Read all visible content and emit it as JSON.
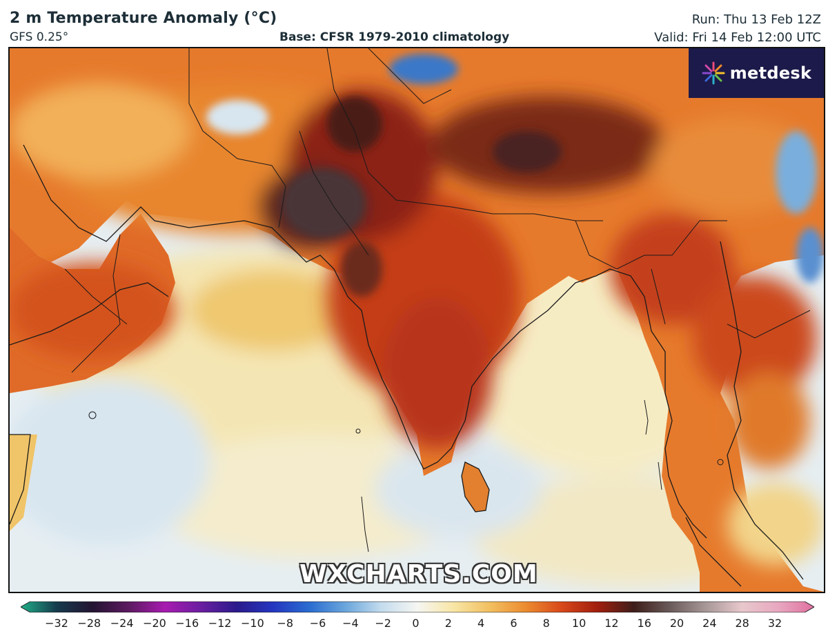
{
  "header": {
    "title": "2 m Temperature Anomaly (°C)",
    "model": "GFS 0.25°",
    "base": "Base: CFSR 1979-2010 climatology",
    "run": "Run: Thu 13 Feb 12Z",
    "valid": "Valid: Fri 14 Feb 12:00 UTC"
  },
  "logo": {
    "text": "metdesk",
    "icon": "metdesk-star-icon"
  },
  "watermark": "WXCHARTS.COM",
  "colorbar": {
    "ticks": [
      "−32",
      "−28",
      "−24",
      "−20",
      "−16",
      "−12",
      "−10",
      "−8",
      "−6",
      "−4",
      "−2",
      "0",
      "2",
      "4",
      "6",
      "8",
      "10",
      "12",
      "16",
      "20",
      "24",
      "28",
      "32"
    ],
    "colors": [
      "#1fae88",
      "#163a4c",
      "#241432",
      "#5c1a60",
      "#a81bb0",
      "#6a1fa0",
      "#2a1a8c",
      "#2436c0",
      "#2a6cd0",
      "#6aa6dc",
      "#c4dcee",
      "#f6f6f2",
      "#f8e6a6",
      "#f2c060",
      "#ec8c30",
      "#d8481a",
      "#a01e0e",
      "#3e1e1a",
      "#6a5a5a",
      "#a89898",
      "#e8c8cc",
      "#e8a8c0",
      "#e070a0"
    ]
  },
  "map_colors": {
    "ocean_cool": "#dce8f0",
    "ocean_neutral": "#f4ecce",
    "warm_light": "#f2c26a",
    "warm": "#ec8c34",
    "hot": "#d6521e",
    "very_hot": "#9c2614",
    "extreme": "#4a2a28",
    "cold": "#3070c8"
  }
}
